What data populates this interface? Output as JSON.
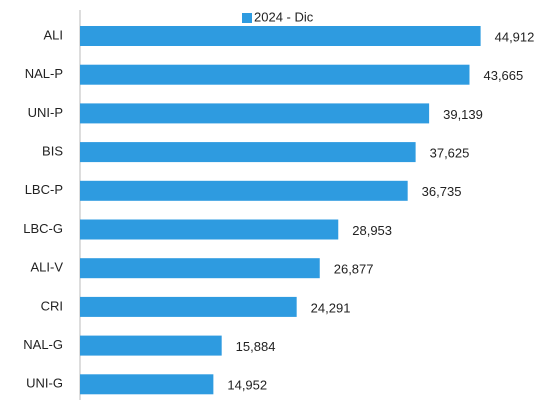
{
  "chart_data": {
    "type": "bar",
    "orientation": "horizontal",
    "categories": [
      "ALI",
      "NAL-P",
      "UNI-P",
      "BIS",
      "LBC-P",
      "LBC-G",
      "ALI-V",
      "CRI",
      "NAL-G",
      "UNI-G"
    ],
    "series": [
      {
        "name": "2024 - Dic",
        "color": "#2e9be0",
        "values": [
          44912,
          43665,
          39139,
          37625,
          36735,
          28953,
          26877,
          24291,
          15884,
          14952
        ],
        "value_labels": [
          "44,912",
          "43,665",
          "39,139",
          "37,625",
          "36,735",
          "28,953",
          "26,877",
          "24,291",
          "15,884",
          "14,952"
        ]
      }
    ],
    "xlim": [
      0,
      50000
    ],
    "legend": "top"
  }
}
